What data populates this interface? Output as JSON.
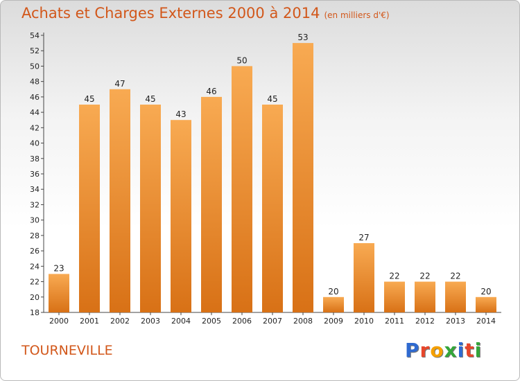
{
  "title": "Achats et Charges Externes 2000 à 2014",
  "subtitle": "(en milliers d'€)",
  "commune": "TOURNEVILLE",
  "logo": {
    "letters": [
      "P",
      "r",
      "o",
      "x",
      "i",
      "t",
      "i"
    ],
    "colors": [
      "#2f6ad0",
      "#e8462a",
      "#f5a000",
      "#34a63a",
      "#2f6ad0",
      "#e8462a",
      "#34a63a"
    ]
  },
  "colors": {
    "bar_top": "#f8aa52",
    "bar_bottom": "#d87116",
    "title": "#d2571a"
  },
  "chart_data": {
    "type": "bar",
    "categories": [
      "2000",
      "2001",
      "2002",
      "2003",
      "2004",
      "2005",
      "2006",
      "2007",
      "2008",
      "2009",
      "2010",
      "2011",
      "2012",
      "2013",
      "2014"
    ],
    "values": [
      23,
      45,
      47,
      45,
      43,
      46,
      50,
      45,
      53,
      20,
      27,
      22,
      22,
      22,
      20
    ],
    "ylim": [
      18,
      54
    ],
    "yticks": [
      18,
      20,
      22,
      24,
      26,
      28,
      30,
      32,
      34,
      36,
      38,
      40,
      42,
      44,
      46,
      48,
      50,
      52,
      54
    ],
    "grid": false
  }
}
